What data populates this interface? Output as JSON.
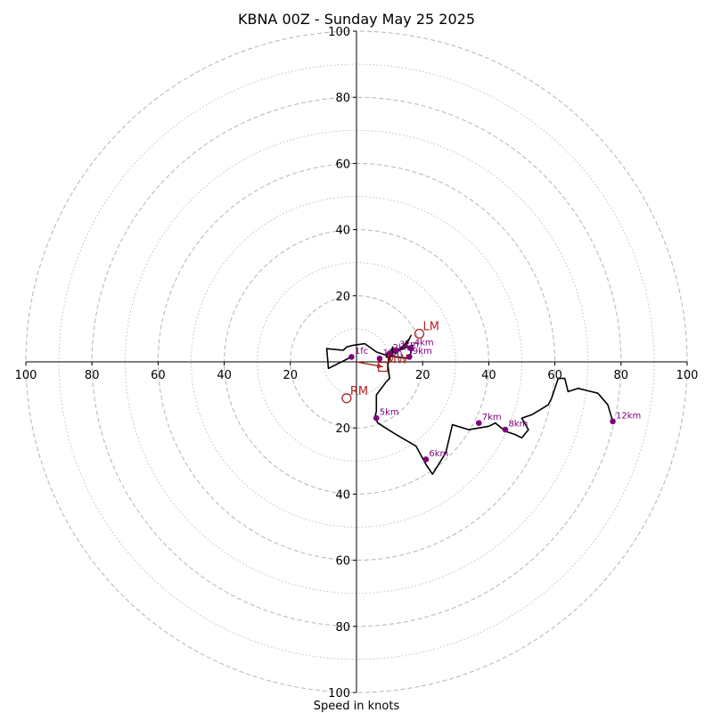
{
  "chart_data": {
    "type": "line",
    "title": "KBNA 00Z - Sunday May 25 2025",
    "xlabel": "Speed in knots",
    "ylabel": "",
    "xlim": [
      -100,
      100
    ],
    "ylim": [
      -100,
      100
    ],
    "rings": [
      10,
      20,
      30,
      40,
      50,
      60,
      70,
      80,
      90,
      100
    ],
    "major_rings": [
      20,
      40,
      60,
      80,
      100
    ],
    "x_tick_labels": [
      "100",
      "80",
      "60",
      "40",
      "20",
      "20",
      "40",
      "60",
      "80",
      "100"
    ],
    "x_tick_values": [
      -100,
      -80,
      -60,
      -40,
      -20,
      20,
      40,
      60,
      80,
      100
    ],
    "y_tick_labels": [
      "100",
      "80",
      "60",
      "40",
      "20",
      "20",
      "40",
      "60",
      "80",
      "100"
    ],
    "y_tick_values": [
      100,
      80,
      60,
      40,
      20,
      -20,
      -40,
      -60,
      -80,
      -100
    ],
    "grid": true,
    "colors": {
      "trace": "#000000",
      "height_marker": "#800080",
      "storm_motion": "#b22222",
      "grid": "#bbbbbb",
      "axis": "#000000"
    },
    "hodograph_trace": {
      "x": [
        -1.5,
        -8.5,
        -9,
        -4,
        -3,
        -1,
        2.5,
        6,
        9,
        12,
        16,
        17,
        14,
        13,
        16,
        16.5,
        15,
        13,
        12,
        10.5,
        11,
        11,
        10,
        9,
        9,
        10,
        9.5,
        10,
        9,
        6,
        6,
        6,
        5.5,
        6.5,
        8,
        12,
        18,
        21,
        23,
        27,
        29,
        34,
        37,
        40,
        42,
        45,
        48,
        50,
        52,
        50,
        53,
        58,
        59,
        61,
        63,
        64,
        67,
        71,
        73,
        76,
        77.5
      ],
      "y": [
        1.5,
        -2,
        4,
        3.5,
        4.5,
        5,
        5.5,
        3,
        2,
        1.5,
        1,
        5,
        4,
        3.5,
        7,
        8,
        5,
        4,
        2.5,
        3.5,
        4.5,
        2.5,
        1,
        2.5,
        1.5,
        1,
        -1,
        -5,
        -6,
        -10,
        -13,
        -15,
        -17,
        -18.5,
        -19.5,
        -22,
        -25.5,
        -31,
        -34,
        -27.5,
        -19,
        -20.5,
        -20,
        -19.5,
        -18.5,
        -21,
        -22,
        -23,
        -20.5,
        -17,
        -16,
        -13,
        -11,
        -5,
        -5,
        -9,
        -8,
        -9,
        -9.5,
        -13,
        -18
      ]
    },
    "height_markers": [
      {
        "label": "1fc",
        "u": -1.5,
        "v": 1.5
      },
      {
        "label": "1km",
        "u": 7,
        "v": 1
      },
      {
        "label": "2km",
        "u": 10,
        "v": 2.5
      },
      {
        "label": "3km",
        "u": 12,
        "v": 3.5
      },
      {
        "label": "4km",
        "u": 16.5,
        "v": 4
      },
      {
        "label": "9km",
        "u": 16,
        "v": 1.5
      },
      {
        "label": "5km",
        "u": 6,
        "v": -17
      },
      {
        "label": "6km",
        "u": 21,
        "v": -29.5
      },
      {
        "label": "7km",
        "u": 37,
        "v": -18.5
      },
      {
        "label": "8km",
        "u": 45,
        "v": -20.5
      },
      {
        "label": "12km",
        "u": 77.5,
        "v": -18
      }
    ],
    "storm_motion": [
      {
        "label": "LM",
        "u": 19,
        "v": 8.5
      },
      {
        "label": "RM",
        "u": -3,
        "v": -11
      },
      {
        "label": "MW",
        "u": 8,
        "v": -1.5
      }
    ]
  }
}
